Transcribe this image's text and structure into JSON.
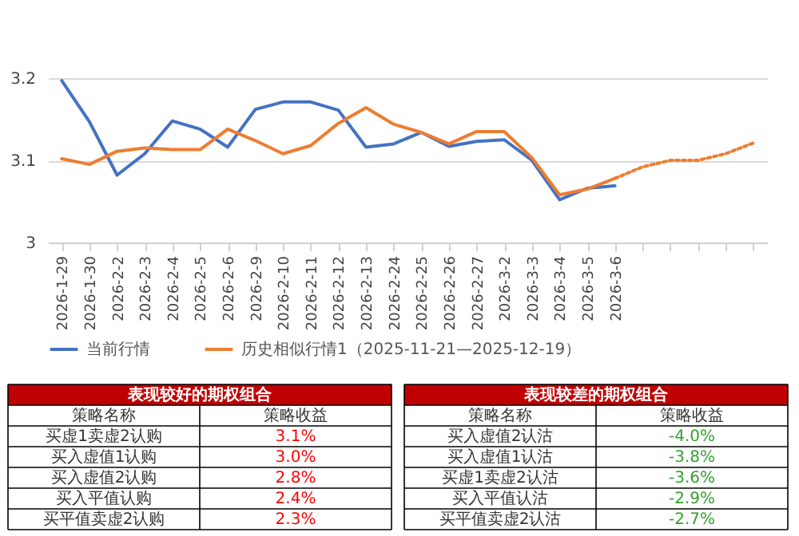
{
  "chart_data": [
    {
      "type": "line",
      "categories": [
        "2026-1-29",
        "2026-1-30",
        "2026-2-2",
        "2026-2-3",
        "2026-2-4",
        "2026-2-5",
        "2026-2-6",
        "2026-2-9",
        "2026-2-10",
        "2026-2-11",
        "2026-2-12",
        "2026-2-13",
        "2026-2-24",
        "2026-2-25",
        "2026-2-26",
        "2026-2-27",
        "2026-3-2",
        "2026-3-3",
        "2026-3-4",
        "2026-3-5",
        "2026-3-6",
        null,
        null,
        null,
        null,
        null
      ],
      "series": [
        {
          "name": "当前行情",
          "color": "#4472c4",
          "values": [
            3.197,
            3.147,
            3.082,
            3.108,
            3.148,
            3.138,
            3.116,
            3.162,
            3.171,
            3.171,
            3.161,
            3.116,
            3.12,
            3.134,
            3.117,
            3.123,
            3.125,
            3.1,
            3.052,
            3.066,
            3.069,
            null,
            null,
            null,
            null,
            null
          ]
        },
        {
          "name": "历史相似行情1（2025-11-21—2025-12-19）",
          "color": "#ed7d31",
          "values": [
            3.102,
            3.095,
            3.111,
            3.115,
            3.113,
            3.113,
            3.138,
            3.124,
            3.108,
            3.118,
            3.145,
            3.164,
            3.144,
            3.134,
            3.12,
            3.135,
            3.135,
            3.103,
            3.058,
            3.065,
            3.078,
            null,
            null,
            null,
            null,
            null
          ]
        },
        {
          "color": "#ed7d31",
          "line_style": "dotted",
          "values": [
            null,
            null,
            null,
            null,
            null,
            null,
            null,
            null,
            null,
            null,
            null,
            null,
            null,
            null,
            null,
            null,
            null,
            null,
            null,
            null,
            3.078,
            3.092,
            3.1,
            3.1,
            3.108,
            3.121
          ]
        }
      ],
      "ylim": [
        3,
        3.2
      ],
      "yticks": [
        3,
        3.1,
        3.2
      ],
      "grid": "y",
      "legend": "bottom",
      "line_style": "solid",
      "marker": "none"
    },
    {
      "type": "other",
      "title": "表现较好的期权组合",
      "xlabel": "策略名称",
      "ylabel": "策略收益",
      "categories": [
        "买虚1卖虚2认购",
        "买入虚值1认购",
        "买入虚值2认购",
        "买入平值认购",
        "买平值卖虚2认购"
      ],
      "value_labels": [
        "3.1%",
        "3.0%",
        "2.8%",
        "2.4%",
        "2.3%"
      ],
      "color": "#ff0000"
    },
    {
      "type": "other",
      "title": "表现较差的期权组合",
      "xlabel": "策略名称",
      "ylabel": "策略收益",
      "categories": [
        "买入虚值2认沽",
        "买入虚值1认沽",
        "买虚1卖虚2认沽",
        "买入平值认沽",
        "买平值卖虚2认沽"
      ],
      "value_labels": [
        "-4.0%",
        "-3.8%",
        "-3.6%",
        "-2.9%",
        "-2.7%"
      ],
      "color": "#33a02c"
    }
  ]
}
